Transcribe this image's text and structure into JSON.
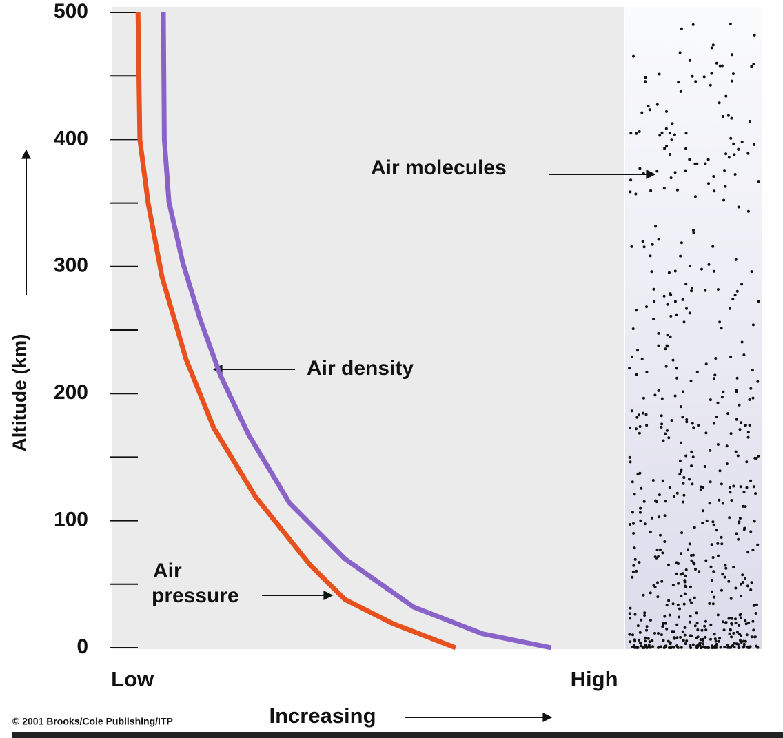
{
  "chart_data": {
    "type": "line",
    "y_label": "Altitude (km)",
    "ylim": [
      0,
      500
    ],
    "yticks": [
      0,
      100,
      200,
      300,
      400,
      500
    ],
    "minor_yticks": [
      50,
      150,
      250,
      350,
      450
    ],
    "xlim": [
      -4.5,
      106.4
    ],
    "xticks": [
      {
        "value": 0,
        "label": "Low"
      },
      {
        "value": 100,
        "label": "High"
      }
    ],
    "x_label": "Increasing",
    "series": [
      {
        "color": "#e8501e",
        "x": [
          1.2,
          1.6,
          3.4,
          6.4,
          11.6,
          17.6,
          26.6,
          38.5,
          46,
          56.4,
          70
        ],
        "values": [
          500,
          400,
          350,
          292,
          227,
          173,
          119,
          65,
          38,
          19,
          0
        ]
      },
      {
        "color": "#8a63c8",
        "x": [
          6.7,
          6.9,
          7.9,
          10.9,
          14.6,
          19.1,
          25.1,
          34,
          46,
          60.9,
          75.8,
          90.7
        ],
        "values": [
          500,
          400,
          351,
          303,
          259,
          214,
          168,
          114,
          70,
          32,
          11,
          0
        ]
      }
    ],
    "annotations": {
      "density": "Air density",
      "pressure_lines": [
        "Air",
        "pressure"
      ],
      "molecules": "Air molecules"
    },
    "credit": "© 2001 Brooks/Cole Publishing/ITP"
  }
}
